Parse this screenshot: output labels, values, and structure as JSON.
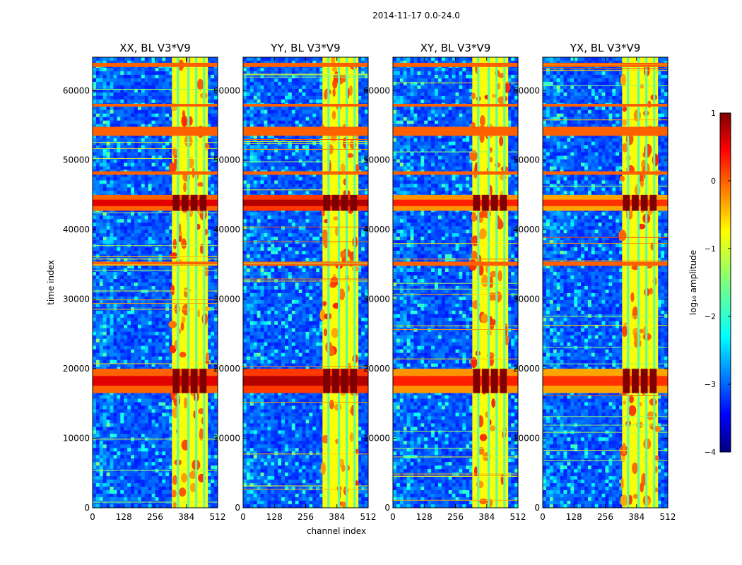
{
  "chart_data": {
    "type": "heatmap",
    "suptitle": "2014-11-17 0.0-24.0",
    "xlabel": "channel index",
    "ylabel": "time index",
    "xlim": [
      0,
      512
    ],
    "ylim": [
      0,
      64800
    ],
    "x_ticks": [
      "0",
      "128",
      "256",
      "384",
      "512"
    ],
    "y_ticks": [
      "0",
      "10000",
      "20000",
      "30000",
      "40000",
      "50000",
      "60000"
    ],
    "panels": [
      {
        "title": "XX, BL V3*V9",
        "strength": 1.0
      },
      {
        "title": "YY, BL V3*V9",
        "strength": 1.15
      },
      {
        "title": "XY, BL V3*V9",
        "strength": 0.85
      },
      {
        "title": "YX, BL V3*V9",
        "strength": 0.8
      }
    ],
    "colorbar": {
      "label": "log₁₀ amplitude",
      "range": [
        -4,
        1
      ],
      "ticks": [
        "1",
        "0",
        "−1",
        "−2",
        "−3",
        "−4"
      ],
      "colormap": "jet"
    },
    "bands": {
      "high_channels": [
        [
          325,
          472
        ]
      ],
      "rfi_rows_strong": [
        [
          16500,
          20000
        ],
        [
          42700,
          45000
        ]
      ],
      "rfi_rows_medium": [
        [
          34800,
          35400
        ],
        [
          47900,
          48400
        ],
        [
          53500,
          54800
        ],
        [
          57700,
          58100
        ],
        [
          63400,
          64000
        ]
      ]
    }
  }
}
